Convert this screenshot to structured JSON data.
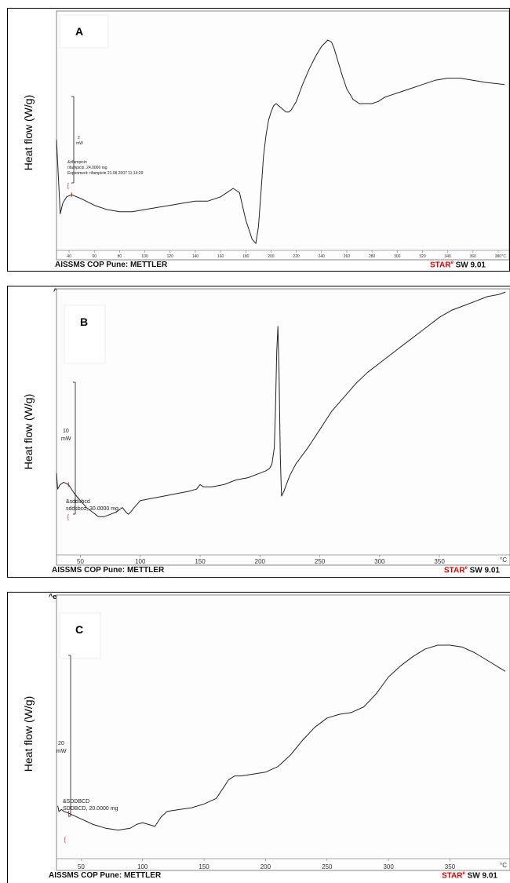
{
  "ylabel": "Heat flow (W/g)",
  "footer": {
    "left": "AISSMS COP Pune: METTLER",
    "brand": "STAR",
    "sup": "e",
    "right": " SW 9.01"
  },
  "exo_label": "^exo",
  "chart_data": [
    {
      "type": "line",
      "panel_label": "A",
      "ylabel": "Heat flow (W/g)",
      "scale_bar": {
        "value": "2",
        "unit": "mW"
      },
      "sample_text": [
        "&rifampicin",
        "rifampicin, 24.0000 mg",
        "Experiment: rifampicin 21.08.2007 11:14:29"
      ],
      "x_ticks": [
        "40",
        "60",
        "80",
        "100",
        "120",
        "140",
        "160",
        "180",
        "200",
        "220",
        "240",
        "260",
        "280",
        "300",
        "320",
        "340",
        "360",
        "380",
        "°C"
      ],
      "xlim": [
        30,
        385
      ],
      "ylim": [
        0,
        100
      ],
      "series": [
        {
          "x": [
            30,
            33,
            35,
            38,
            42,
            50,
            60,
            70,
            80,
            90,
            100,
            110,
            120,
            130,
            140,
            150,
            160,
            165,
            170,
            175,
            180,
            185,
            188,
            190,
            192,
            194,
            196,
            198,
            200,
            202,
            204,
            206,
            208,
            210,
            212,
            214,
            216,
            218,
            220,
            225,
            230,
            235,
            240,
            245,
            248,
            250,
            253,
            256,
            260,
            265,
            270,
            275,
            280,
            285,
            290,
            295,
            300,
            310,
            320,
            330,
            340,
            350,
            360,
            370,
            385
          ],
          "y": [
            53,
            18,
            23,
            26,
            27,
            25,
            22,
            20,
            19,
            19,
            20,
            21,
            22,
            23,
            24,
            24,
            26,
            28,
            30,
            28,
            15,
            6,
            4,
            12,
            28,
            45,
            55,
            62,
            66,
            69,
            70,
            69,
            68,
            67,
            66,
            66,
            67,
            69,
            71,
            79,
            86,
            92,
            97,
            100,
            99,
            96,
            90,
            84,
            77,
            72,
            70,
            70,
            70,
            71,
            73,
            74,
            75,
            77,
            79,
            81,
            82,
            82,
            81,
            80,
            79
          ]
        }
      ]
    },
    {
      "type": "line",
      "panel_label": "B",
      "ylabel": "Heat flow (W/g)",
      "scale_bar": {
        "value": "10",
        "unit": "mW"
      },
      "sample_text": [
        "&sddsbcd",
        "sddsbcd, 30.0000 mg"
      ],
      "x_ticks": [
        "50",
        "100",
        "150",
        "200",
        "250",
        "300",
        "350",
        "°C"
      ],
      "xlim": [
        30,
        405
      ],
      "ylim": [
        0,
        100
      ],
      "series": [
        {
          "x": [
            30,
            31,
            33,
            36,
            40,
            45,
            50,
            55,
            60,
            65,
            70,
            75,
            80,
            85,
            88,
            90,
            92,
            95,
            100,
            110,
            120,
            130,
            140,
            147,
            150,
            153,
            160,
            170,
            180,
            190,
            200,
            205,
            208,
            210,
            212,
            213,
            214,
            215,
            216,
            217,
            218,
            220,
            222,
            225,
            230,
            240,
            250,
            260,
            270,
            280,
            290,
            300,
            310,
            320,
            330,
            340,
            350,
            360,
            370,
            380,
            390,
            400,
            405
          ],
          "y": [
            22,
            15,
            17,
            18,
            17,
            13,
            10,
            7,
            5,
            3,
            3,
            4,
            5,
            7,
            5,
            4,
            5,
            7,
            10,
            11,
            12,
            13,
            14,
            15,
            17,
            16,
            16,
            17,
            19,
            20,
            22,
            23,
            24,
            26,
            33,
            50,
            75,
            86,
            65,
            30,
            12,
            14,
            17,
            21,
            26,
            33,
            41,
            49,
            55,
            61,
            66,
            70,
            74,
            78,
            82,
            86,
            90,
            93,
            95,
            97,
            99,
            100,
            101
          ]
        }
      ]
    },
    {
      "type": "line",
      "panel_label": "C",
      "ylabel": "Heat flow (W/g)",
      "scale_bar": {
        "value": "20",
        "unit": "mW"
      },
      "sample_text": [
        "&SDDBCD",
        "SDDBCD, 20.0000 mg"
      ],
      "x_ticks": [
        "50",
        "100",
        "150",
        "200",
        "250",
        "300",
        "350",
        "°C"
      ],
      "xlim": [
        30,
        395
      ],
      "ylim": [
        0,
        100
      ],
      "series": [
        {
          "x": [
            31,
            32,
            34,
            36,
            40,
            50,
            60,
            70,
            80,
            90,
            95,
            100,
            105,
            110,
            115,
            120,
            130,
            140,
            150,
            160,
            165,
            170,
            175,
            180,
            190,
            200,
            210,
            220,
            230,
            240,
            250,
            260,
            270,
            280,
            290,
            300,
            310,
            320,
            330,
            340,
            350,
            360,
            370,
            380,
            390,
            395
          ],
          "y": [
            14,
            11,
            12,
            11,
            10,
            7,
            4,
            2,
            1,
            2,
            4,
            5,
            4,
            3,
            8,
            11,
            12,
            13,
            15,
            18,
            23,
            28,
            30,
            30,
            31,
            32,
            35,
            41,
            49,
            56,
            61,
            63,
            64,
            67,
            74,
            83,
            89,
            94,
            98,
            100,
            100,
            99,
            96,
            92,
            88,
            86
          ]
        }
      ]
    }
  ]
}
